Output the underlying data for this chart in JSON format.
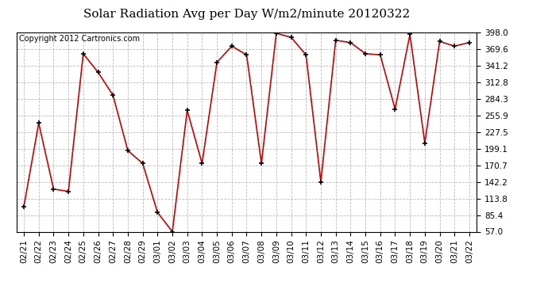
{
  "title": "Solar Radiation Avg per Day W/m2/minute 20120322",
  "copyright_text": "Copyright 2012 Cartronics.com",
  "dates": [
    "02/21",
    "02/22",
    "02/23",
    "02/24",
    "02/25",
    "02/26",
    "02/27",
    "02/28",
    "02/29",
    "03/01",
    "03/02",
    "03/03",
    "03/04",
    "03/05",
    "03/06",
    "03/07",
    "03/08",
    "03/09",
    "03/10",
    "03/11",
    "03/12",
    "03/13",
    "03/14",
    "03/15",
    "03/16",
    "03/17",
    "03/18",
    "03/19",
    "03/20",
    "03/21",
    "03/22"
  ],
  "values": [
    100,
    243,
    130,
    126,
    362,
    330,
    291,
    196,
    174,
    90,
    57,
    265,
    174,
    347,
    375,
    360,
    174,
    397,
    390,
    360,
    142,
    385,
    381,
    362,
    360,
    267,
    395,
    209,
    383,
    375,
    381
  ],
  "line_color": "#cc0000",
  "marker_color": "#000000",
  "background_color": "#ffffff",
  "plot_bg_color": "#ffffff",
  "grid_color": "#bbbbbb",
  "ylim": [
    57.0,
    398.0
  ],
  "yticks": [
    57.0,
    85.4,
    113.8,
    142.2,
    170.7,
    199.1,
    227.5,
    255.9,
    284.3,
    312.8,
    341.2,
    369.6,
    398.0
  ],
  "title_fontsize": 11,
  "copyright_fontsize": 7,
  "tick_fontsize": 7.5
}
